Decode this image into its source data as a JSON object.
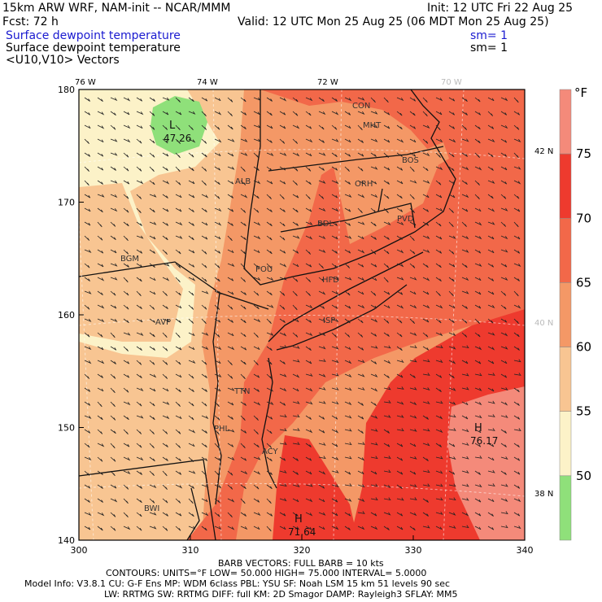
{
  "header": {
    "model_line": "15km ARW WRF, NAM-init -- NCAR/MMM",
    "init_line": "Init: 12 UTC Fri 22 Aug 25",
    "fcst_line": "Fcst:   72 h",
    "valid_line": "Valid: 12 UTC Mon 25 Aug 25 (06 MDT Mon 25 Aug 25)",
    "field1_name": "Surface dewpoint temperature",
    "field1_sm": "sm= 1",
    "field2_name": "Surface dewpoint temperature",
    "field2_sm": "sm= 1",
    "field3_name": "<U10,V10> Vectors"
  },
  "map": {
    "x_ticks": [
      "300",
      "310",
      "320",
      "330",
      "340"
    ],
    "y_ticks": [
      "140",
      "150",
      "160",
      "170",
      "180"
    ],
    "lon_labels": [
      "76 W",
      "74 W",
      "72 W",
      "70 W"
    ],
    "lat_labels": [
      "42 N",
      "40 N",
      "38 N"
    ],
    "stations": [
      "CON",
      "MHT",
      "BOS",
      "ORH",
      "ALB",
      "BDL",
      "PVD",
      "POU",
      "HFD",
      "BGM",
      "AVP",
      "ISP",
      "TTN",
      "PHL",
      "ACY",
      "BWI"
    ],
    "low_label": "L",
    "low_value": "47.26",
    "high1_label": "H",
    "high1_value": "76.17",
    "high2_label": "H",
    "high2_value": "71.64"
  },
  "colorbar": {
    "unit": "°F",
    "labels": [
      "75",
      "70",
      "65",
      "60",
      "55",
      "50"
    ],
    "colors": [
      "#f48a7a",
      "#ee3a2e",
      "#f26849",
      "#f49866",
      "#f8c592",
      "#fcf2c8",
      "#8fe07a"
    ]
  },
  "footer": {
    "barb_line": "BARB VECTORS:  FULL BARB = 10 kts",
    "contours_line": "CONTOURS:  UNITS=°F    LOW=  50.000        HIGH=  75.000      INTERVAL=    5.0000",
    "model_info_line": "Model Info: V3.8.1      CU: G-F Ens  MP: WDM 6class   PBL: YSU       SF: Noah LSM     15 km    51 levels   90 sec",
    "physics_line": "LW: RRTMG    SW: RRTMG   DIFF: full    KM: 2D Smagor DAMP: Rayleigh3   SFLAY: MM5"
  }
}
